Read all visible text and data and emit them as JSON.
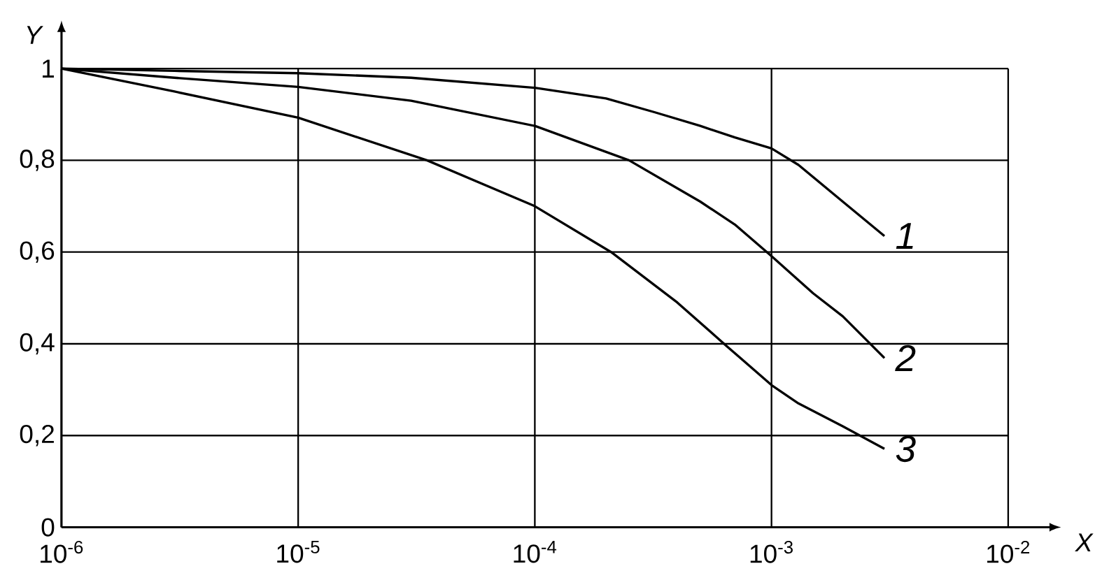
{
  "chart_data": {
    "type": "line",
    "xlabel": "X",
    "ylabel": "Y",
    "log": "x",
    "grid": true,
    "marker": "none",
    "line_style": "solid",
    "xlim": [
      1e-06,
      0.01
    ],
    "ylim": [
      0,
      1
    ],
    "xticks": [
      {
        "value": 1e-06,
        "label": "10$^{-6}$"
      },
      {
        "value": 1e-05,
        "label": "10$^{-5}$"
      },
      {
        "value": 0.0001,
        "label": "10$^{-4}$"
      },
      {
        "value": 0.001,
        "label": "10$^{-3}$"
      },
      {
        "value": 0.01,
        "label": "10$^{-2}$"
      }
    ],
    "yticks": [
      {
        "value": 0,
        "label": "0"
      },
      {
        "value": 0.2,
        "label": "0,2"
      },
      {
        "value": 0.4,
        "label": "0,4"
      },
      {
        "value": 0.6,
        "label": "0,6"
      },
      {
        "value": 0.8,
        "label": "0,8"
      },
      {
        "value": 1,
        "label": "1"
      }
    ],
    "series": [
      {
        "name": "1",
        "color": "#000000",
        "x": [
          1e-06,
          3e-06,
          1e-05,
          3e-05,
          0.0001,
          0.0002,
          0.00032,
          0.0005,
          0.0007,
          0.001,
          0.0013,
          0.002,
          0.003
        ],
        "values": [
          1,
          0.995,
          0.99,
          0.98,
          0.958,
          0.935,
          0.905,
          0.875,
          0.85,
          0.826,
          0.79,
          0.71,
          0.635
        ]
      },
      {
        "name": "2",
        "color": "#000000",
        "x": [
          1e-06,
          3e-06,
          1e-05,
          3e-05,
          0.0001,
          0.00025,
          0.0005,
          0.0007,
          0.001,
          0.0015,
          0.002,
          0.003
        ],
        "values": [
          1,
          0.98,
          0.96,
          0.93,
          0.875,
          0.8,
          0.71,
          0.66,
          0.591,
          0.51,
          0.46,
          0.369
        ]
      },
      {
        "name": "3",
        "color": "#000000",
        "x": [
          1e-06,
          3e-06,
          1e-05,
          3.5e-05,
          0.0001,
          0.00021,
          0.0004,
          0.00065,
          0.001,
          0.0013,
          0.002,
          0.003
        ],
        "values": [
          1,
          0.95,
          0.893,
          0.8,
          0.7,
          0.6,
          0.49,
          0.394,
          0.31,
          0.27,
          0.22,
          0.171
        ]
      }
    ]
  }
}
